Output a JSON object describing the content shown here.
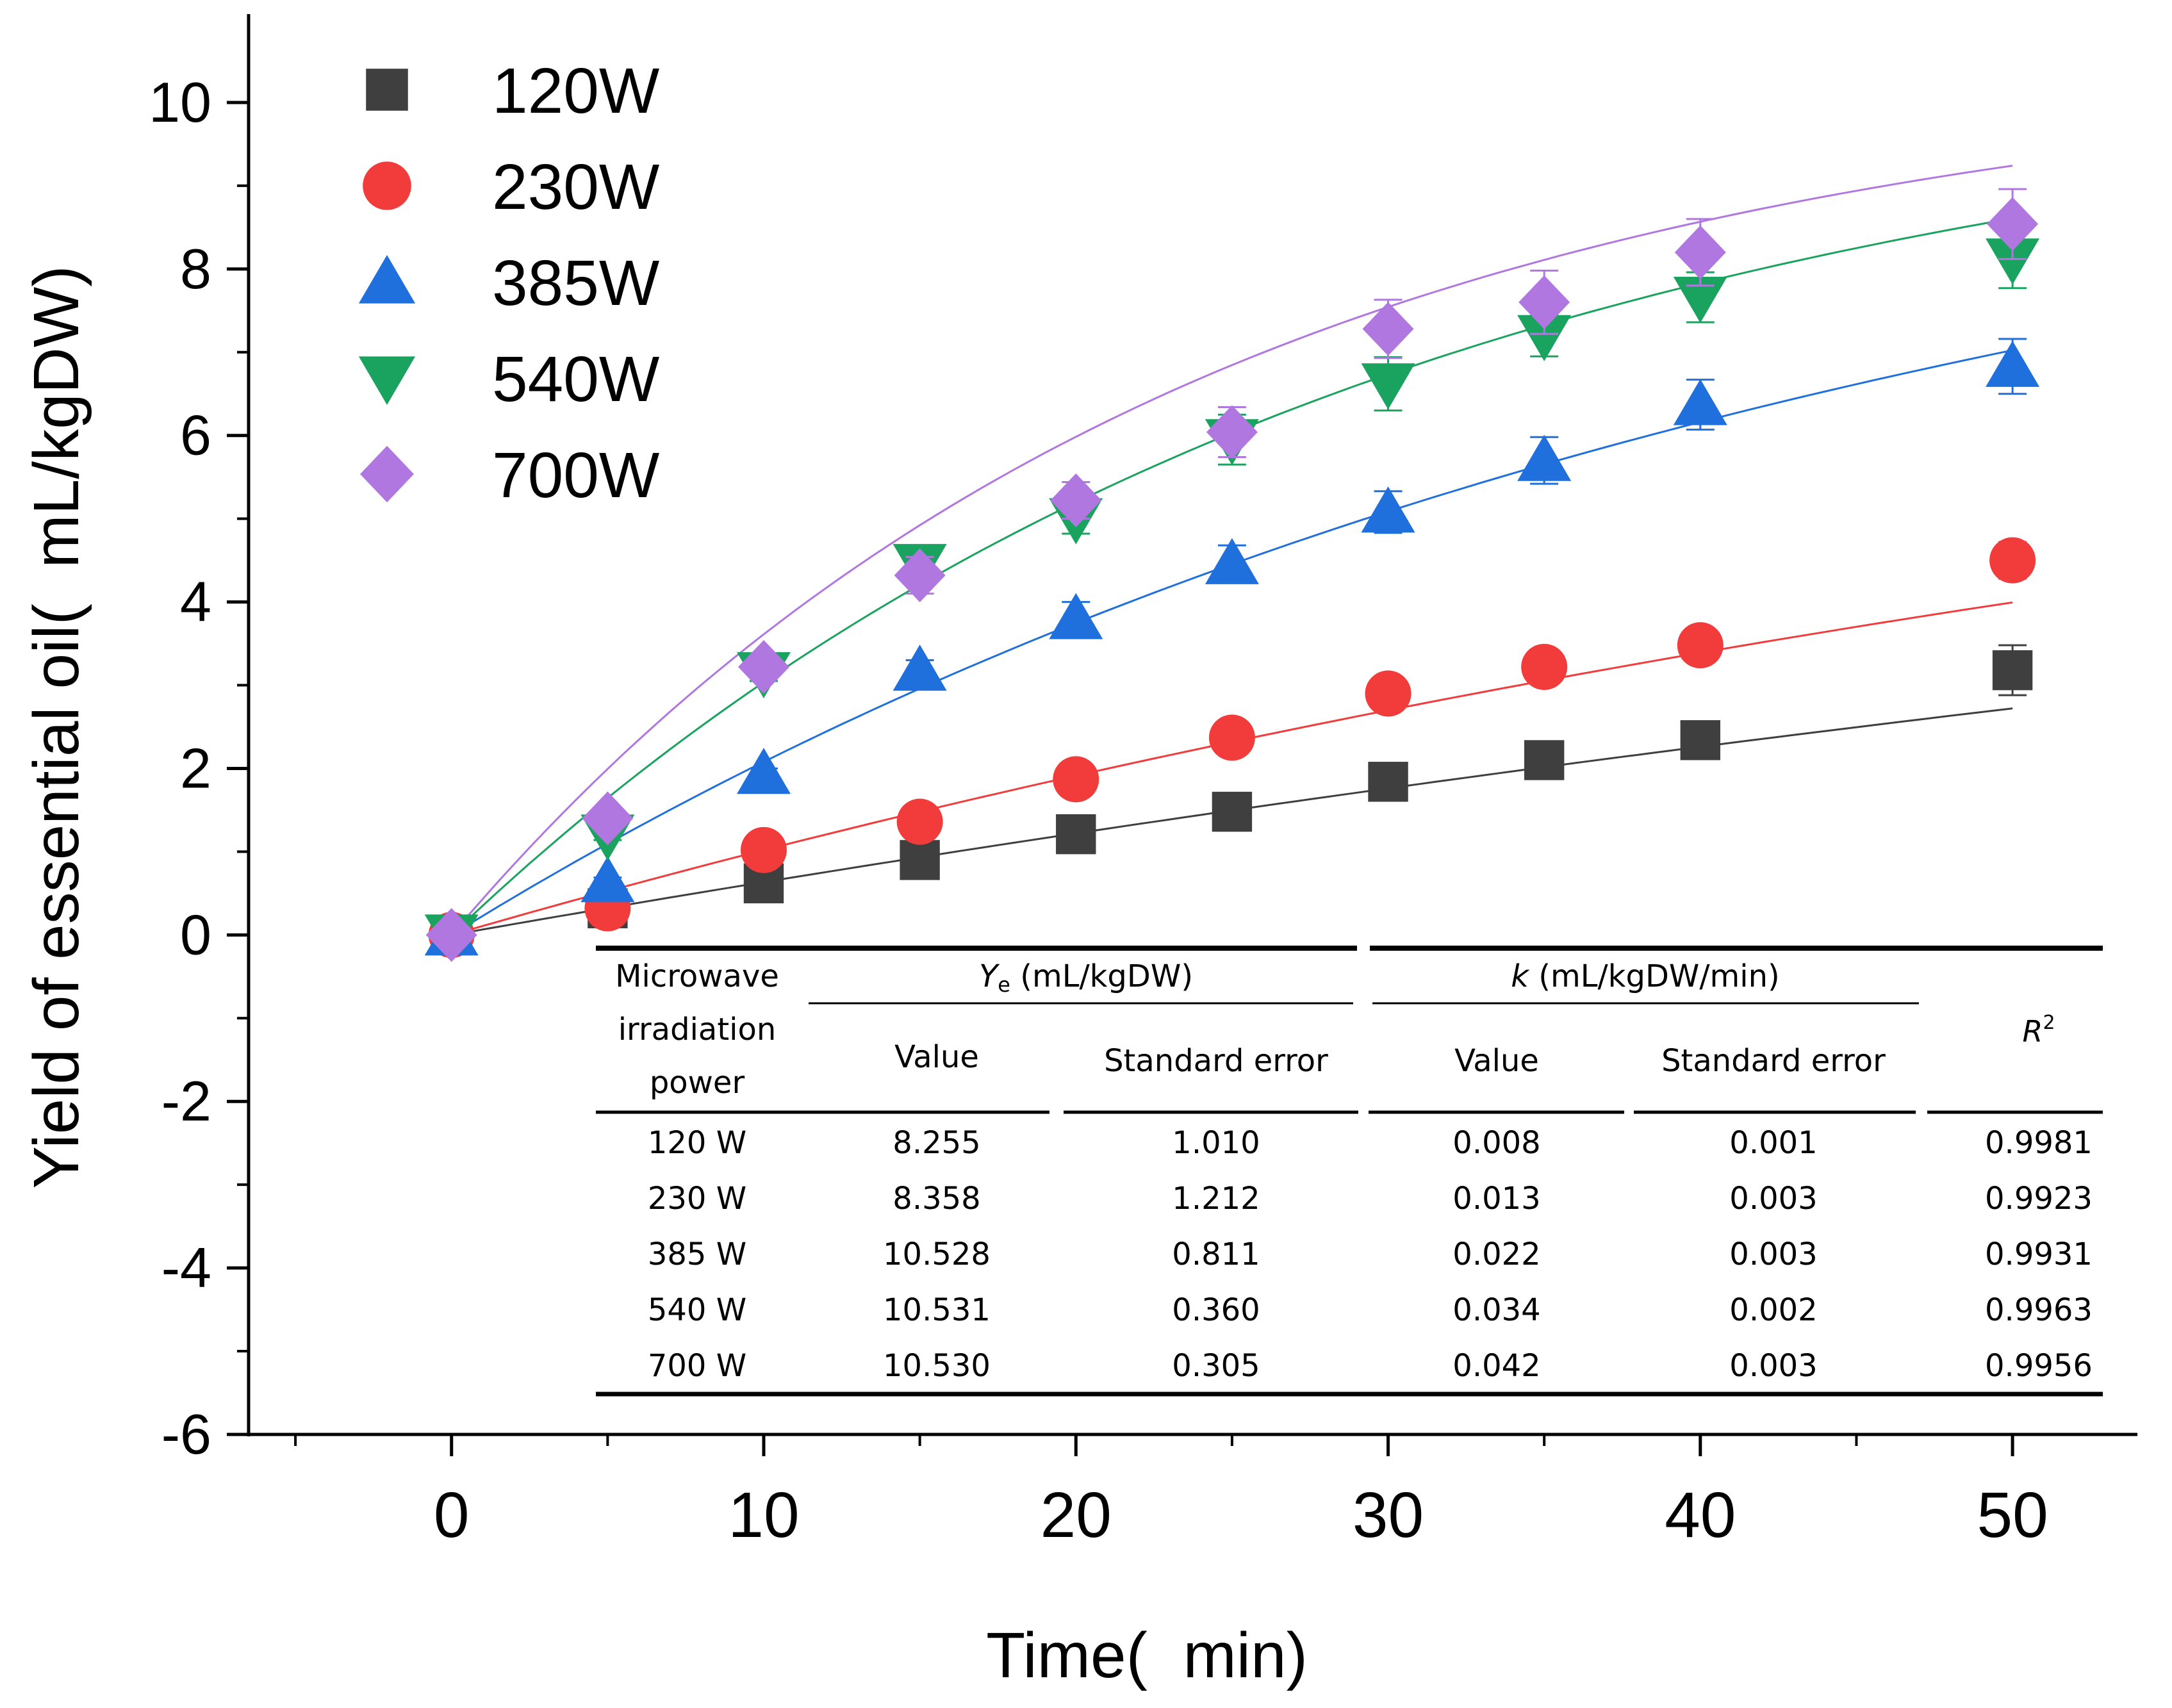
{
  "chart_data": {
    "type": "scatter",
    "title": "",
    "xlabel": "Time(  min)",
    "ylabel": "Yield of essential oil(  mL/kgDW)",
    "xlim": [
      -6.5,
      54
    ],
    "ylim": [
      -6,
      11
    ],
    "xticks": [
      0,
      10,
      20,
      30,
      40,
      50
    ],
    "yticks": [
      -6,
      -4,
      -2,
      0,
      2,
      4,
      6,
      8,
      10
    ],
    "grid": false,
    "legend_position": "top-left",
    "x": [
      0,
      5,
      10,
      15,
      20,
      25,
      30,
      35,
      40,
      50
    ],
    "series": [
      {
        "name": "120W",
        "marker": "square",
        "color": "#3f3f3f",
        "values": [
          0,
          0.32,
          0.62,
          0.9,
          1.21,
          1.48,
          1.84,
          2.1,
          2.34,
          3.18
        ],
        "errors": [
          0.05,
          0.05,
          0.05,
          0.05,
          0.06,
          0.07,
          0.12,
          0.2,
          0.22,
          0.3
        ],
        "fit": {
          "Ye": 8.255,
          "k": 0.008
        }
      },
      {
        "name": "230W",
        "marker": "circle",
        "color": "#f23c3c",
        "values": [
          0,
          0.32,
          1.02,
          1.36,
          1.87,
          2.37,
          2.9,
          3.22,
          3.48,
          4.5
        ],
        "errors": [
          0.05,
          0.05,
          0.05,
          0.05,
          0.06,
          0.07,
          0.1,
          0.12,
          0.15,
          0.22
        ],
        "fit": {
          "Ye": 8.358,
          "k": 0.013
        }
      },
      {
        "name": "385W",
        "marker": "triangle-up",
        "color": "#1f6fdc",
        "values": [
          0,
          0.64,
          1.94,
          3.18,
          3.8,
          4.46,
          5.08,
          5.7,
          6.37,
          6.83
        ],
        "errors": [
          0.05,
          0.05,
          0.06,
          0.12,
          0.2,
          0.22,
          0.25,
          0.28,
          0.3,
          0.33
        ],
        "fit": {
          "Ye": 10.528,
          "k": 0.022
        }
      },
      {
        "name": "540W",
        "marker": "triangle-down",
        "color": "#1aa35e",
        "values": [
          0,
          1.2,
          3.15,
          4.45,
          5.0,
          5.95,
          6.62,
          7.2,
          7.66,
          8.12
        ],
        "errors": [
          0.05,
          0.06,
          0.1,
          0.22,
          0.18,
          0.3,
          0.32,
          0.25,
          0.3,
          0.35
        ],
        "fit": {
          "Ye": 10.531,
          "k": 0.034
        }
      },
      {
        "name": "700W",
        "marker": "diamond",
        "color": "#b077e0",
        "values": [
          0,
          1.4,
          3.22,
          4.32,
          5.22,
          6.04,
          7.28,
          7.6,
          8.2,
          8.54
        ],
        "errors": [
          0.05,
          0.06,
          0.1,
          0.22,
          0.22,
          0.3,
          0.35,
          0.38,
          0.4,
          0.42
        ],
        "fit": {
          "Ye": 10.53,
          "k": 0.042
        }
      }
    ],
    "table": {
      "header_col1": [
        "Microwave",
        "irradiation",
        "power"
      ],
      "ye_group": {
        "label": "(mL/kgDW)",
        "italic": "Y",
        "sub": "e"
      },
      "k_group": {
        "label": "(mL/kgDW/min)",
        "italic": "k"
      },
      "r2": {
        "italic": "R",
        "sup": "2"
      },
      "subheaders": [
        "Value",
        "Standard error",
        "Value",
        "Standard error"
      ],
      "rows": [
        [
          "120 W",
          "8.255",
          "1.010",
          "0.008",
          "0.001",
          "0.9981"
        ],
        [
          "230 W",
          "8.358",
          "1.212",
          "0.013",
          "0.003",
          "0.9923"
        ],
        [
          "385 W",
          "10.528",
          "0.811",
          "0.022",
          "0.003",
          "0.9931"
        ],
        [
          "540 W",
          "10.531",
          "0.360",
          "0.034",
          "0.002",
          "0.9963"
        ],
        [
          "700 W",
          "10.530",
          "0.305",
          "0.042",
          "0.003",
          "0.9956"
        ]
      ]
    }
  }
}
